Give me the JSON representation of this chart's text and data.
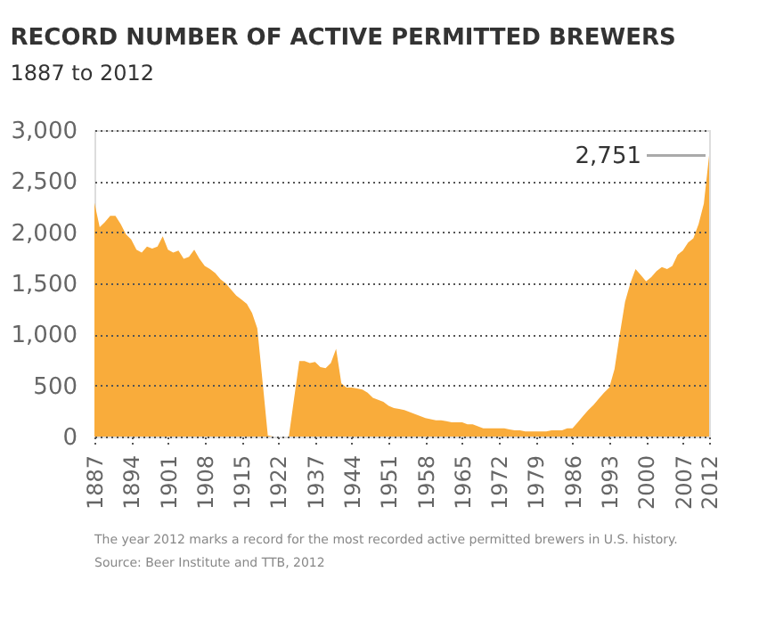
{
  "chart_data": {
    "type": "area",
    "title": "RECORD NUMBER OF ACTIVE PERMITTED BREWERS",
    "subtitle": "1887 to 2012",
    "categories": [
      "1887",
      null,
      null,
      null,
      null,
      null,
      null,
      "1894",
      null,
      null,
      null,
      null,
      null,
      null,
      "1901",
      null,
      null,
      null,
      null,
      null,
      null,
      "1908",
      null,
      null,
      null,
      null,
      null,
      null,
      "1915",
      null,
      null,
      null,
      null,
      null,
      null,
      "1922",
      null,
      null,
      null,
      null,
      null,
      null,
      "1937",
      null,
      null,
      null,
      null,
      null,
      null,
      "1944",
      null,
      null,
      null,
      null,
      null,
      null,
      "1951",
      null,
      null,
      null,
      null,
      null,
      null,
      "1958",
      null,
      null,
      null,
      null,
      null,
      null,
      "1965",
      null,
      null,
      null,
      null,
      null,
      null,
      "1972",
      null,
      null,
      null,
      null,
      null,
      null,
      "1979",
      null,
      null,
      null,
      null,
      null,
      null,
      "1986",
      null,
      null,
      null,
      null,
      null,
      null,
      "1993",
      null,
      null,
      null,
      null,
      null,
      null,
      "2000",
      null,
      null,
      null,
      null,
      null,
      null,
      "2007",
      null,
      null,
      null,
      null,
      "2012"
    ],
    "series": [
      {
        "color": "#f9ac3b",
        "values": [
          2290,
          2050,
          2100,
          2160,
          2160,
          2080,
          1980,
          1930,
          1830,
          1800,
          1860,
          1840,
          1860,
          1960,
          1830,
          1800,
          1820,
          1740,
          1760,
          1830,
          1740,
          1670,
          1640,
          1600,
          1540,
          1500,
          1440,
          1380,
          1340,
          1300,
          1210,
          1060,
          540,
          10,
          0,
          0,
          0,
          0,
          370,
          740,
          740,
          720,
          730,
          680,
          670,
          720,
          860,
          520,
          480,
          480,
          470,
          460,
          430,
          380,
          360,
          340,
          300,
          280,
          270,
          260,
          240,
          220,
          200,
          180,
          170,
          160,
          160,
          150,
          140,
          140,
          140,
          120,
          120,
          100,
          80,
          80,
          80,
          80,
          80,
          70,
          60,
          60,
          50,
          50,
          50,
          50,
          50,
          60,
          60,
          60,
          80,
          80,
          140,
          200,
          260,
          310,
          370,
          430,
          480,
          660,
          1000,
          1320,
          1500,
          1640,
          1580,
          1520,
          1560,
          1620,
          1660,
          1640,
          1670,
          1780,
          1820,
          1900,
          1940,
          2080,
          2280,
          2751
        ]
      }
    ],
    "ylim": [
      0,
      3000
    ],
    "yticks": [
      {
        "value": 0,
        "label": "0"
      },
      {
        "value": 500,
        "label": "500"
      },
      {
        "value": 1000,
        "label": "1,000"
      },
      {
        "value": 1500,
        "label": "1,500"
      },
      {
        "value": 2000,
        "label": "2,000"
      },
      {
        "value": 2500,
        "label": "2,500"
      },
      {
        "value": 3000,
        "label": "3,000"
      }
    ],
    "grid": "y",
    "annotations": [
      {
        "text": "2,751",
        "x": "2012",
        "y": 2751
      },
      "The year 2012 marks a record for the most recorded active permitted brewers in U.S. history.",
      "Source: Beer Institute and TTB, 2012"
    ]
  }
}
